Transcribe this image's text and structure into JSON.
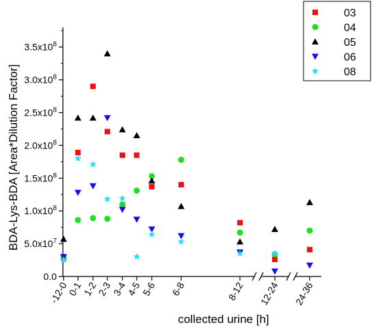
{
  "chart_data": {
    "type": "scatter",
    "title": "",
    "xlabel": "collected urine [h]",
    "ylabel": "BDA-Lys-BDA [Area*Dilution Factor]",
    "categories": [
      "-12-0",
      "0-1",
      "1-2",
      "2-3",
      "3-4",
      "4-5",
      "5-6",
      "6-8",
      "8-12",
      "12-24",
      "24-36"
    ],
    "x_positions_hours": [
      0,
      0.5,
      1.5,
      2.5,
      3.5,
      4.5,
      5.5,
      7,
      10,
      18,
      30
    ],
    "x_axis_breaks": [
      "between 8-12 and 12-24",
      "between 12-24 and 24-36"
    ],
    "ylim": [
      0,
      380000000
    ],
    "y_ticks": [
      {
        "value": 0,
        "label": "0.0"
      },
      {
        "value": 50000000,
        "label": "5.0x10^7"
      },
      {
        "value": 100000000,
        "label": "1.0x10^8"
      },
      {
        "value": 150000000,
        "label": "1.5x10^8"
      },
      {
        "value": 200000000,
        "label": "2.0x10^8"
      },
      {
        "value": 250000000,
        "label": "2.5x10^8"
      },
      {
        "value": 300000000,
        "label": "3.0x10^8"
      },
      {
        "value": 350000000,
        "label": "3.5x10^8"
      }
    ],
    "grid": false,
    "legend_position": "top-right",
    "series": [
      {
        "name": "03",
        "marker": "square",
        "color": "#ee1111",
        "values": [
          28000000,
          189000000,
          290000000,
          221000000,
          185000000,
          185000000,
          137000000,
          140000000,
          82000000,
          26000000,
          41000000
        ]
      },
      {
        "name": "04",
        "marker": "circle",
        "color": "#22dd22",
        "values": [
          29000000,
          86000000,
          89000000,
          88000000,
          110000000,
          131000000,
          153000000,
          178000000,
          67000000,
          34000000,
          70000000
        ]
      },
      {
        "name": "05",
        "marker": "triangle-up",
        "color": "#000000",
        "values": [
          57000000,
          242000000,
          242000000,
          340000000,
          224000000,
          215000000,
          146000000,
          107000000,
          53000000,
          72000000,
          113000000
        ]
      },
      {
        "name": "06",
        "marker": "triangle-down",
        "color": "#1111ee",
        "values": [
          30000000,
          128000000,
          138000000,
          242000000,
          102000000,
          87000000,
          72000000,
          62000000,
          37000000,
          8000000,
          17000000
        ]
      },
      {
        "name": "08",
        "marker": "star",
        "color": "#22ddff",
        "values": [
          25000000,
          180000000,
          171000000,
          118000000,
          119000000,
          30000000,
          64000000,
          53000000,
          35000000,
          35000000,
          null
        ]
      }
    ]
  }
}
